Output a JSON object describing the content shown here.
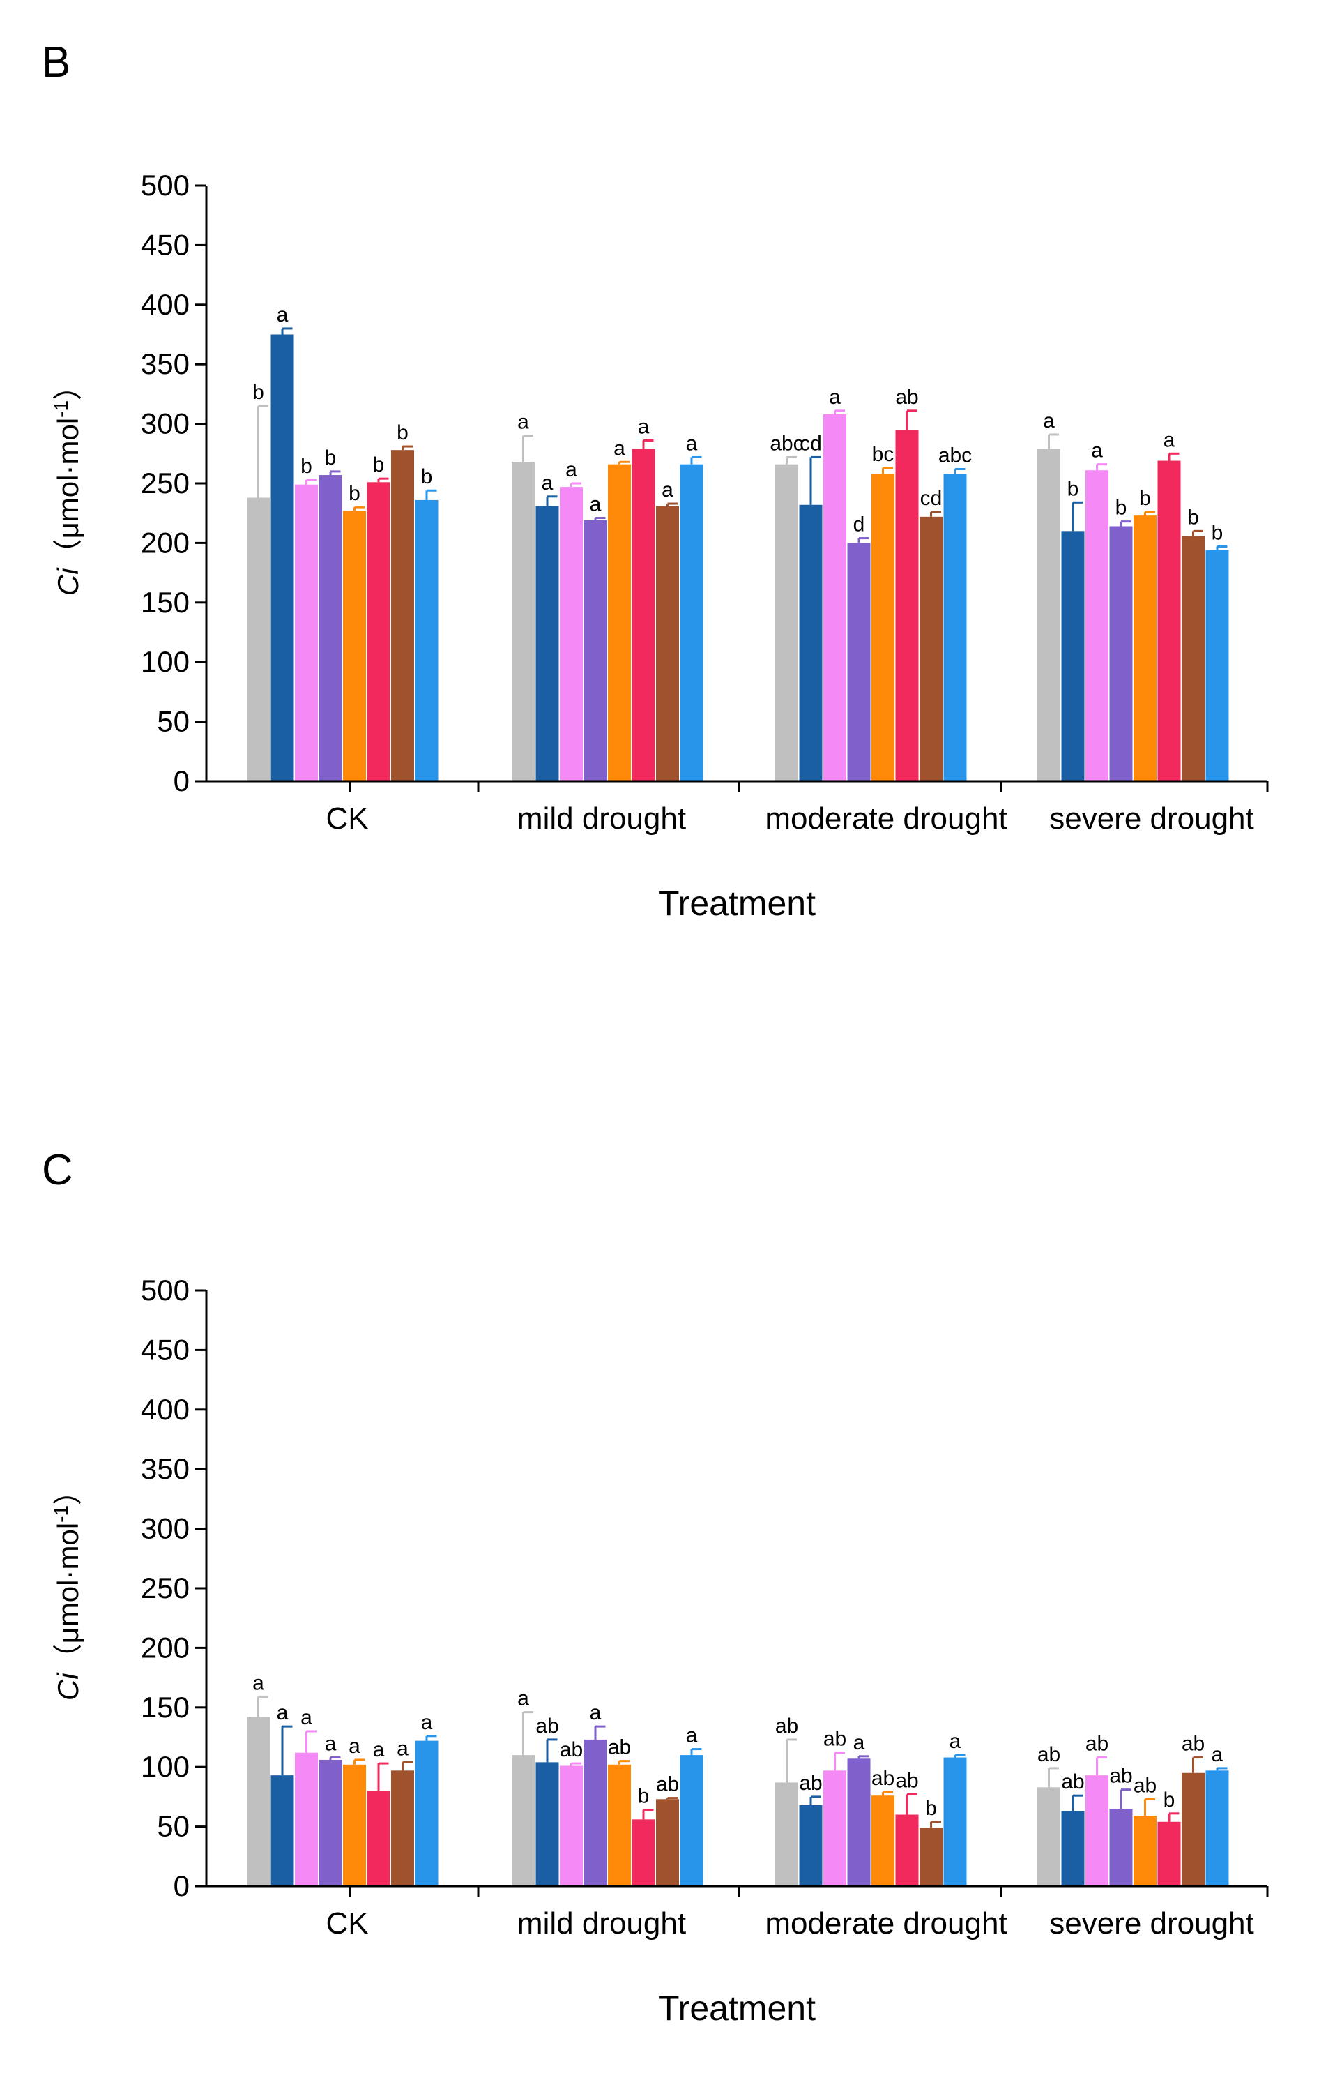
{
  "series_colors": [
    "#c0c0c0",
    "#1a5fa3",
    "#f589f5",
    "#8061cc",
    "#ff8a0a",
    "#f2295c",
    "#a0522d",
    "#2894ea"
  ],
  "chart_data": [
    {
      "type": "bar",
      "panel": "B",
      "title": "",
      "xlabel": "Treatment",
      "ylabel_main": "Ci",
      "ylabel_unit": "（μmol·mol",
      "ylabel_sup": "-1",
      "ylabel_close": "）",
      "ylim": [
        0,
        500
      ],
      "yticks": [
        "0",
        "50",
        "100",
        "150",
        "200",
        "250",
        "300",
        "350",
        "400",
        "450",
        "500"
      ],
      "categories": [
        "CK",
        "mild drought",
        "moderate drought",
        "severe drought"
      ],
      "groups": [
        {
          "values": [
            238,
            375,
            249,
            257,
            227,
            251,
            278,
            236
          ],
          "errors": [
            77,
            5,
            4,
            3,
            3,
            3,
            3,
            8
          ],
          "letters": [
            "b",
            "a",
            "b",
            "b",
            "b",
            "b",
            "b",
            "b"
          ]
        },
        {
          "values": [
            268,
            231,
            247,
            219,
            266,
            279,
            231,
            266
          ],
          "errors": [
            22,
            8,
            3,
            2,
            2,
            7,
            2,
            6
          ],
          "letters": [
            "a",
            "a",
            "a",
            "a",
            "a",
            "a",
            "a",
            "a"
          ]
        },
        {
          "values": [
            266,
            232,
            308,
            200,
            258,
            295,
            222,
            258
          ],
          "errors": [
            6,
            40,
            3,
            4,
            5,
            16,
            4,
            4
          ],
          "letters": [
            "abc",
            "cd",
            "a",
            "d",
            "bc",
            "ab",
            "cd",
            "abc"
          ]
        },
        {
          "values": [
            279,
            210,
            261,
            214,
            223,
            269,
            206,
            194
          ],
          "errors": [
            12,
            24,
            5,
            4,
            3,
            6,
            4,
            3
          ],
          "letters": [
            "a",
            "b",
            "a",
            "b",
            "b",
            "a",
            "b",
            "b"
          ]
        }
      ]
    },
    {
      "type": "bar",
      "panel": "C",
      "title": "",
      "xlabel": "Treatment",
      "ylabel_main": "Ci",
      "ylabel_unit": "（μmol·mol",
      "ylabel_sup": "-1",
      "ylabel_close": "）",
      "ylim": [
        0,
        500
      ],
      "yticks": [
        "0",
        "50",
        "100",
        "150",
        "200",
        "250",
        "300",
        "350",
        "400",
        "450",
        "500"
      ],
      "categories": [
        "CK",
        "mild drought",
        "moderate drought",
        "severe drought"
      ],
      "groups": [
        {
          "values": [
            142,
            93,
            112,
            106,
            102,
            80,
            97,
            122
          ],
          "errors": [
            17,
            41,
            18,
            2,
            4,
            23,
            7,
            4
          ],
          "letters": [
            "a",
            "a",
            "a",
            "a",
            "a",
            "a",
            "a",
            "a"
          ]
        },
        {
          "values": [
            110,
            104,
            101,
            123,
            102,
            56,
            73,
            110
          ],
          "errors": [
            36,
            19,
            2,
            11,
            3,
            8,
            1,
            5
          ],
          "letters": [
            "a",
            "ab",
            "ab",
            "a",
            "ab",
            "b",
            "ab",
            "a"
          ]
        },
        {
          "values": [
            87,
            68,
            97,
            107,
            76,
            60,
            49,
            108
          ],
          "errors": [
            36,
            7,
            15,
            2,
            3,
            17,
            5,
            2
          ],
          "letters": [
            "ab",
            "ab",
            "ab",
            "a",
            "ab",
            "ab",
            "b",
            "a"
          ]
        },
        {
          "values": [
            83,
            63,
            93,
            65,
            59,
            54,
            95,
            97
          ],
          "errors": [
            16,
            13,
            15,
            16,
            14,
            7,
            13,
            2
          ],
          "letters": [
            "ab",
            "ab",
            "ab",
            "ab",
            "ab",
            "b",
            "ab",
            "a"
          ]
        }
      ]
    }
  ]
}
